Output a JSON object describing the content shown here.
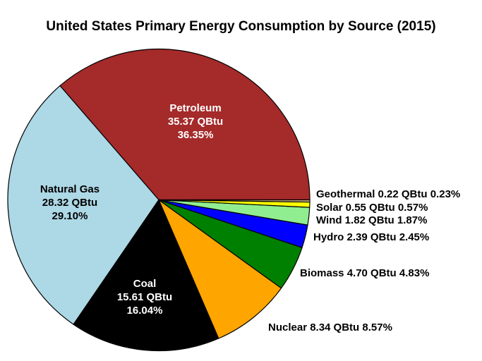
{
  "title": "United States Primary Energy Consumption by Source (2015)",
  "chart_data": {
    "type": "pie",
    "title": "United States Primary Energy Consumption by Source (2015)",
    "unit": "QBtu",
    "start_angle_deg": 0,
    "direction": "counterclockwise",
    "slices": [
      {
        "label": "Petroleum",
        "value_qbtu": 35.37,
        "percent": 36.35,
        "color": "#A52A2A",
        "label_position": "inside",
        "label_color": "#FFFFFF"
      },
      {
        "label": "Natural Gas",
        "value_qbtu": 28.32,
        "percent": 29.1,
        "color": "#ADD8E6",
        "label_position": "inside",
        "label_color": "#000000"
      },
      {
        "label": "Coal",
        "value_qbtu": 15.61,
        "percent": 16.04,
        "color": "#000000",
        "label_position": "inside",
        "label_color": "#FFFFFF"
      },
      {
        "label": "Nuclear",
        "value_qbtu": 8.34,
        "percent": 8.57,
        "color": "#FFA500",
        "label_position": "outside",
        "label_color": "#000000"
      },
      {
        "label": "Biomass",
        "value_qbtu": 4.7,
        "percent": 4.83,
        "color": "#008000",
        "label_position": "outside",
        "label_color": "#000000"
      },
      {
        "label": "Hydro",
        "value_qbtu": 2.39,
        "percent": 2.45,
        "color": "#0000FF",
        "label_position": "outside",
        "label_color": "#000000"
      },
      {
        "label": "Wind",
        "value_qbtu": 1.82,
        "percent": 1.87,
        "color": "#90EE90",
        "label_position": "outside",
        "label_color": "#000000"
      },
      {
        "label": "Solar",
        "value_qbtu": 0.55,
        "percent": 0.57,
        "color": "#FFFF00",
        "label_position": "outside",
        "label_color": "#000000"
      },
      {
        "label": "Geothermal",
        "value_qbtu": 0.22,
        "percent": 0.23,
        "color": "#D2B48C",
        "label_position": "outside",
        "label_color": "#000000"
      }
    ]
  },
  "inside_labels": {
    "petroleum": {
      "name": "Petroleum",
      "qty": "35.37 QBtu",
      "pct": "36.35%"
    },
    "natural_gas": {
      "name": "Natural Gas",
      "qty": "28.32 QBtu",
      "pct": "29.10%"
    },
    "coal": {
      "name": "Coal",
      "qty": "15.61 QBtu",
      "pct": "16.04%"
    }
  },
  "side_labels": {
    "geothermal": "Geothermal 0.22 QBtu 0.23%",
    "solar": "Solar 0.55 QBtu 0.57%",
    "wind": "Wind 1.82 QBtu 1.87%",
    "hydro": "Hydro 2.39 QBtu 2.45%",
    "biomass": "Biomass 4.70 QBtu 4.83%",
    "nuclear": "Nuclear 8.34 QBtu 8.57%"
  }
}
